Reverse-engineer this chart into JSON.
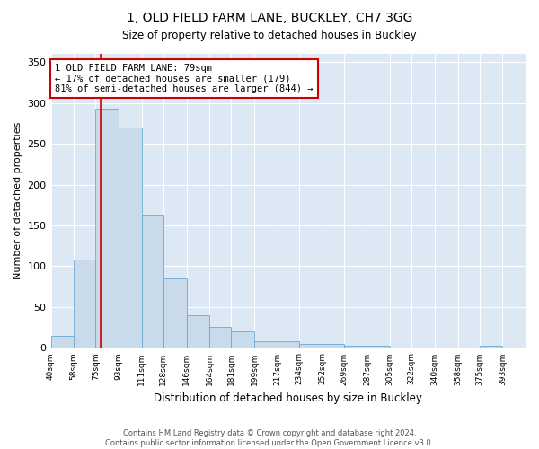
{
  "title": "1, OLD FIELD FARM LANE, BUCKLEY, CH7 3GG",
  "subtitle": "Size of property relative to detached houses in Buckley",
  "xlabel": "Distribution of detached houses by size in Buckley",
  "ylabel": "Number of detached properties",
  "bins": [
    "40sqm",
    "58sqm",
    "75sqm",
    "93sqm",
    "111sqm",
    "128sqm",
    "146sqm",
    "164sqm",
    "181sqm",
    "199sqm",
    "217sqm",
    "234sqm",
    "252sqm",
    "269sqm",
    "287sqm",
    "305sqm",
    "322sqm",
    "340sqm",
    "358sqm",
    "375sqm",
    "393sqm"
  ],
  "bin_edges": [
    40,
    58,
    75,
    93,
    111,
    128,
    146,
    164,
    181,
    199,
    217,
    234,
    252,
    269,
    287,
    305,
    322,
    340,
    358,
    375,
    393,
    411
  ],
  "values": [
    15,
    108,
    293,
    270,
    163,
    85,
    40,
    26,
    20,
    8,
    8,
    5,
    5,
    3,
    3,
    0,
    0,
    0,
    0,
    3,
    0
  ],
  "bar_color": "#c9daea",
  "bar_edge_color": "#6aaad4",
  "property_size": 79,
  "red_line_color": "#cc0000",
  "annotation_text": "1 OLD FIELD FARM LANE: 79sqm\n← 17% of detached houses are smaller (179)\n81% of semi-detached houses are larger (844) →",
  "annotation_box_facecolor": "#ffffff",
  "annotation_box_edgecolor": "#cc0000",
  "ylim": [
    0,
    360
  ],
  "yticks": [
    0,
    50,
    100,
    150,
    200,
    250,
    300,
    350
  ],
  "figure_facecolor": "#ffffff",
  "axes_facecolor": "#dce9f5",
  "grid_color": "#ffffff",
  "footer_line1": "Contains HM Land Registry data © Crown copyright and database right 2024.",
  "footer_line2": "Contains public sector information licensed under the Open Government Licence v3.0."
}
